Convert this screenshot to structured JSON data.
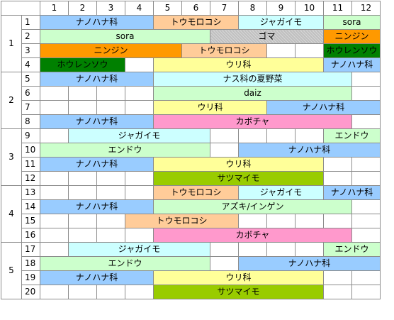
{
  "columns": [
    "1",
    "2",
    "3",
    "4",
    "5",
    "6",
    "7",
    "8",
    "9",
    "10",
    "11",
    "12"
  ],
  "colors": {
    "blue": "#99ccff",
    "peach": "#ffcc99",
    "cyan": "#ccffff",
    "green": "#ccffcc",
    "gray": "#c0c0c0",
    "orange": "#ff9900",
    "darkgreen": "#008000",
    "yellow": "#ffff99",
    "pink": "#ff99cc",
    "olive": "#99cc00",
    "white": "#ffffff"
  },
  "groups": [
    {
      "label": "1",
      "rows": [
        {
          "num": "1",
          "cells": [
            {
              "text": "ナノハナ科",
              "span": 4,
              "color": "blue"
            },
            {
              "text": "トウモロコシ",
              "span": 3,
              "color": "peach"
            },
            {
              "text": "ジャガイモ",
              "span": 3,
              "color": "cyan"
            },
            {
              "text": "sora",
              "span": 2,
              "color": "green"
            }
          ]
        },
        {
          "num": "2",
          "cells": [
            {
              "text": "sora",
              "span": 6,
              "color": "green"
            },
            {
              "text": "ゴマ",
              "span": 4,
              "color": "gray",
              "pattern": true
            },
            {
              "text": "ニンジン",
              "span": 2,
              "color": "orange"
            }
          ]
        },
        {
          "num": "3",
          "cells": [
            {
              "text": "ニンジン",
              "span": 5,
              "color": "orange"
            },
            {
              "text": "トウモロコシ",
              "span": 3,
              "color": "peach"
            },
            {
              "text": "",
              "span": 1,
              "color": "white"
            },
            {
              "text": "",
              "span": 1,
              "color": "white"
            },
            {
              "text": "ホウレンソウ",
              "span": 2,
              "color": "darkgreen",
              "textcolor": "#000000"
            }
          ]
        },
        {
          "num": "4",
          "cells": [
            {
              "text": "ホウレンソウ",
              "span": 3,
              "color": "darkgreen"
            },
            {
              "text": "",
              "span": 1,
              "color": "white"
            },
            {
              "text": "ウリ科",
              "span": 6,
              "color": "yellow"
            },
            {
              "text": "ナノハナ科",
              "span": 2,
              "color": "blue"
            }
          ]
        }
      ]
    },
    {
      "label": "2",
      "rows": [
        {
          "num": "5",
          "cells": [
            {
              "text": "ナノハナ科",
              "span": 4,
              "color": "blue"
            },
            {
              "text": "ナス科の夏野菜",
              "span": 7,
              "color": "cyan"
            },
            {
              "text": "",
              "span": 1,
              "color": "white"
            }
          ]
        },
        {
          "num": "6",
          "cells": [
            {
              "text": "",
              "span": 1,
              "color": "white"
            },
            {
              "text": "",
              "span": 1,
              "color": "white"
            },
            {
              "text": "",
              "span": 1,
              "color": "white"
            },
            {
              "text": "",
              "span": 1,
              "color": "white"
            },
            {
              "text": "daiz",
              "span": 7,
              "color": "green"
            },
            {
              "text": "",
              "span": 1,
              "color": "white"
            }
          ]
        },
        {
          "num": "7",
          "cells": [
            {
              "text": "",
              "span": 1,
              "color": "white"
            },
            {
              "text": "",
              "span": 1,
              "color": "white"
            },
            {
              "text": "",
              "span": 1,
              "color": "white"
            },
            {
              "text": "",
              "span": 1,
              "color": "white"
            },
            {
              "text": "ウリ科",
              "span": 4,
              "color": "yellow"
            },
            {
              "text": "ナノハナ科",
              "span": 4,
              "color": "blue"
            }
          ]
        },
        {
          "num": "8",
          "cells": [
            {
              "text": "ナノハナ科",
              "span": 4,
              "color": "blue"
            },
            {
              "text": "カボチャ",
              "span": 7,
              "color": "pink"
            },
            {
              "text": "",
              "span": 1,
              "color": "white"
            }
          ]
        }
      ]
    },
    {
      "label": "3",
      "rows": [
        {
          "num": "9",
          "cells": [
            {
              "text": "",
              "span": 1,
              "color": "white"
            },
            {
              "text": "ジャガイモ",
              "span": 5,
              "color": "cyan"
            },
            {
              "text": "",
              "span": 1,
              "color": "white"
            },
            {
              "text": "",
              "span": 1,
              "color": "white"
            },
            {
              "text": "",
              "span": 1,
              "color": "white"
            },
            {
              "text": "",
              "span": 1,
              "color": "white"
            },
            {
              "text": "エンドウ",
              "span": 2,
              "color": "green"
            }
          ]
        },
        {
          "num": "10",
          "cells": [
            {
              "text": "エンドウ",
              "span": 6,
              "color": "green"
            },
            {
              "text": "",
              "span": 1,
              "color": "white"
            },
            {
              "text": "ナノハナ科",
              "span": 5,
              "color": "blue"
            }
          ]
        },
        {
          "num": "11",
          "cells": [
            {
              "text": "ナノハナ科",
              "span": 4,
              "color": "blue"
            },
            {
              "text": "ウリ科",
              "span": 6,
              "color": "yellow"
            },
            {
              "text": "",
              "span": 1,
              "color": "white"
            },
            {
              "text": "",
              "span": 1,
              "color": "white"
            }
          ]
        },
        {
          "num": "12",
          "cells": [
            {
              "text": "",
              "span": 1,
              "color": "white"
            },
            {
              "text": "",
              "span": 1,
              "color": "white"
            },
            {
              "text": "",
              "span": 1,
              "color": "white"
            },
            {
              "text": "",
              "span": 1,
              "color": "white"
            },
            {
              "text": "サツマイモ",
              "span": 6,
              "color": "olive"
            },
            {
              "text": "",
              "span": 1,
              "color": "white"
            },
            {
              "text": "",
              "span": 1,
              "color": "white"
            }
          ]
        }
      ]
    },
    {
      "label": "4",
      "rows": [
        {
          "num": "13",
          "cells": [
            {
              "text": "",
              "span": 1,
              "color": "white"
            },
            {
              "text": "",
              "span": 1,
              "color": "white"
            },
            {
              "text": "",
              "span": 1,
              "color": "white"
            },
            {
              "text": "",
              "span": 1,
              "color": "white"
            },
            {
              "text": "トウモロコシ",
              "span": 3,
              "color": "peach"
            },
            {
              "text": "ジャガイモ",
              "span": 3,
              "color": "cyan"
            },
            {
              "text": "ナノハナ科",
              "span": 2,
              "color": "blue"
            }
          ]
        },
        {
          "num": "14",
          "cells": [
            {
              "text": "ナノハナ科",
              "span": 4,
              "color": "blue"
            },
            {
              "text": "アズキ/インゲン",
              "span": 7,
              "color": "green"
            },
            {
              "text": "",
              "span": 1,
              "color": "white"
            }
          ]
        },
        {
          "num": "15",
          "cells": [
            {
              "text": "",
              "span": 1,
              "color": "white"
            },
            {
              "text": "",
              "span": 1,
              "color": "white"
            },
            {
              "text": "",
              "span": 1,
              "color": "white"
            },
            {
              "text": "トウモロコシ",
              "span": 4,
              "color": "peach"
            },
            {
              "text": "",
              "span": 1,
              "color": "white"
            },
            {
              "text": "",
              "span": 1,
              "color": "white"
            },
            {
              "text": "",
              "span": 1,
              "color": "white"
            },
            {
              "text": "",
              "span": 1,
              "color": "white"
            },
            {
              "text": "",
              "span": 1,
              "color": "white"
            }
          ]
        },
        {
          "num": "16",
          "cells": [
            {
              "text": "",
              "span": 1,
              "color": "white"
            },
            {
              "text": "",
              "span": 1,
              "color": "white"
            },
            {
              "text": "",
              "span": 1,
              "color": "white"
            },
            {
              "text": "",
              "span": 1,
              "color": "white"
            },
            {
              "text": "カボチャ",
              "span": 7,
              "color": "pink"
            },
            {
              "text": "",
              "span": 1,
              "color": "white"
            }
          ]
        }
      ]
    },
    {
      "label": "5",
      "rows": [
        {
          "num": "17",
          "cells": [
            {
              "text": "",
              "span": 1,
              "color": "white"
            },
            {
              "text": "ジャガイモ",
              "span": 5,
              "color": "cyan"
            },
            {
              "text": "",
              "span": 1,
              "color": "white"
            },
            {
              "text": "",
              "span": 1,
              "color": "white"
            },
            {
              "text": "",
              "span": 1,
              "color": "white"
            },
            {
              "text": "",
              "span": 1,
              "color": "white"
            },
            {
              "text": "エンドウ",
              "span": 2,
              "color": "green"
            }
          ]
        },
        {
          "num": "18",
          "cells": [
            {
              "text": "エンドウ",
              "span": 6,
              "color": "green"
            },
            {
              "text": "",
              "span": 1,
              "color": "white"
            },
            {
              "text": "ナノハナ科",
              "span": 5,
              "color": "blue"
            }
          ]
        },
        {
          "num": "19",
          "cells": [
            {
              "text": "ナノハナ科",
              "span": 4,
              "color": "blue"
            },
            {
              "text": "ウリ科",
              "span": 6,
              "color": "yellow"
            },
            {
              "text": "",
              "span": 1,
              "color": "white"
            },
            {
              "text": "",
              "span": 1,
              "color": "white"
            }
          ]
        },
        {
          "num": "20",
          "cells": [
            {
              "text": "",
              "span": 1,
              "color": "white"
            },
            {
              "text": "",
              "span": 1,
              "color": "white"
            },
            {
              "text": "",
              "span": 1,
              "color": "white"
            },
            {
              "text": "",
              "span": 1,
              "color": "white"
            },
            {
              "text": "サツマイモ",
              "span": 6,
              "color": "olive"
            },
            {
              "text": "",
              "span": 1,
              "color": "white"
            },
            {
              "text": "",
              "span": 1,
              "color": "white"
            }
          ]
        }
      ]
    }
  ]
}
